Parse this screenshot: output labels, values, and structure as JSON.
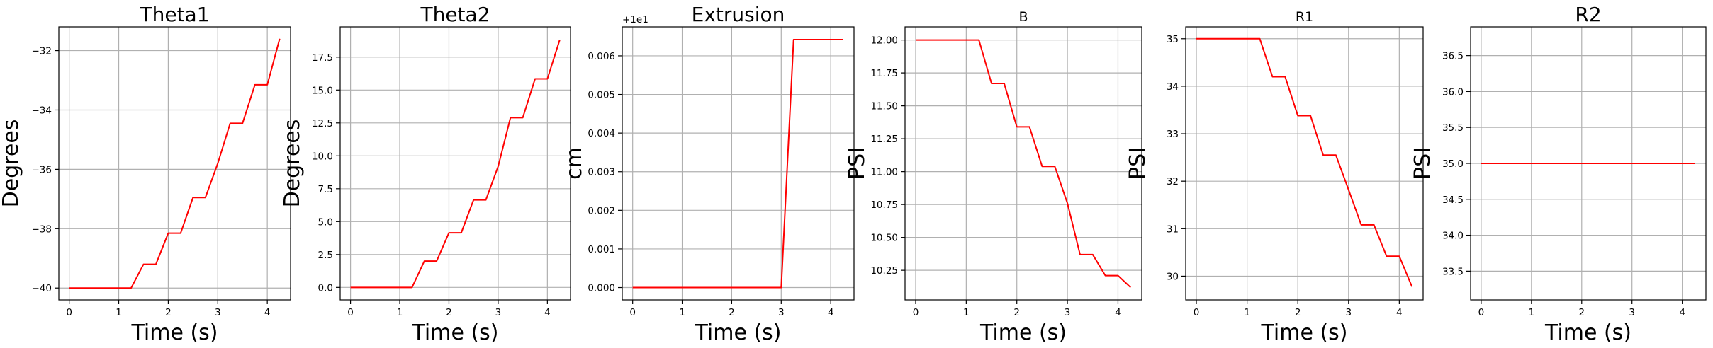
{
  "chart_data": [
    {
      "type": "line",
      "title": "Theta1",
      "title_size": "large",
      "xlabel": "Time (s)",
      "ylabel": "Degrees",
      "xlim": [
        -0.21,
        4.47
      ],
      "ylim": [
        -40.4,
        -31.2
      ],
      "xticks": [
        0,
        1,
        2,
        3,
        4
      ],
      "yticks": [
        -40,
        -38,
        -36,
        -34,
        -32
      ],
      "ytick_labels": [
        "−40",
        "−38",
        "−36",
        "−34",
        "−32"
      ],
      "offset_text": "",
      "grid": true,
      "series": [
        {
          "color": "#ff0000",
          "x": [
            0,
            0.25,
            0.5,
            0.75,
            1.0,
            1.25,
            1.5,
            1.75,
            2.0,
            2.25,
            2.5,
            2.75,
            3.0,
            3.25,
            3.5,
            3.75,
            4.0,
            4.25
          ],
          "y": [
            -40,
            -40,
            -40,
            -40,
            -40,
            -40,
            -39.2,
            -39.2,
            -38.15,
            -38.15,
            -36.95,
            -36.95,
            -35.8,
            -34.45,
            -34.45,
            -33.15,
            -33.15,
            -31.6
          ]
        }
      ]
    },
    {
      "type": "line",
      "title": "Theta2",
      "title_size": "large",
      "xlabel": "Time (s)",
      "ylabel": "Degrees",
      "xlim": [
        -0.21,
        4.47
      ],
      "ylim": [
        -0.95,
        19.8
      ],
      "xticks": [
        0,
        1,
        2,
        3,
        4
      ],
      "yticks": [
        0,
        2.5,
        5,
        7.5,
        10,
        12.5,
        15,
        17.5
      ],
      "ytick_labels": [
        "0.0",
        "2.5",
        "5.0",
        "7.5",
        "10.0",
        "12.5",
        "15.0",
        "17.5"
      ],
      "offset_text": "",
      "grid": true,
      "series": [
        {
          "color": "#ff0000",
          "x": [
            0,
            0.25,
            0.5,
            0.75,
            1.0,
            1.25,
            1.5,
            1.75,
            2.0,
            2.25,
            2.5,
            2.75,
            3.0,
            3.25,
            3.5,
            3.75,
            4.0,
            4.25
          ],
          "y": [
            0,
            0,
            0,
            0,
            0,
            0,
            2,
            2,
            4.15,
            4.15,
            6.65,
            6.65,
            9.2,
            12.9,
            12.9,
            15.85,
            15.85,
            18.8
          ]
        }
      ]
    },
    {
      "type": "line",
      "title": "Extrusion",
      "title_size": "large",
      "xlabel": "Time (s)",
      "ylabel": "cm",
      "xlim": [
        -0.21,
        4.47
      ],
      "ylim": [
        -0.00032,
        0.00675
      ],
      "xticks": [
        0,
        1,
        2,
        3,
        4
      ],
      "yticks": [
        0,
        0.001,
        0.002,
        0.003,
        0.004,
        0.005,
        0.006
      ],
      "ytick_labels": [
        "0.000",
        "0.001",
        "0.002",
        "0.003",
        "0.004",
        "0.005",
        "0.006"
      ],
      "offset_text": "+1e1",
      "grid": true,
      "series": [
        {
          "color": "#ff0000",
          "x": [
            0,
            0.25,
            0.5,
            0.75,
            1.0,
            1.25,
            1.5,
            1.75,
            2.0,
            2.25,
            2.5,
            2.75,
            3.0,
            3.25,
            3.5,
            3.75,
            4.0,
            4.25
          ],
          "y": [
            0,
            0,
            0,
            0,
            0,
            0,
            0,
            0,
            0,
            0,
            0,
            0,
            0,
            0.00642,
            0.00642,
            0.00642,
            0.00642,
            0.00642
          ]
        }
      ]
    },
    {
      "type": "line",
      "title": "B",
      "title_size": "small",
      "xlabel": "Time (s)",
      "ylabel": "PSI",
      "xlim": [
        -0.21,
        4.47
      ],
      "ylim": [
        10.025,
        12.1
      ],
      "xticks": [
        0,
        1,
        2,
        3,
        4
      ],
      "yticks": [
        10.25,
        10.5,
        10.75,
        11.0,
        11.25,
        11.5,
        11.75,
        12.0
      ],
      "ytick_labels": [
        "10.25",
        "10.50",
        "10.75",
        "11.00",
        "11.25",
        "11.50",
        "11.75",
        "12.00"
      ],
      "offset_text": "",
      "grid": true,
      "series": [
        {
          "color": "#ff0000",
          "x": [
            0,
            0.25,
            0.5,
            0.75,
            1.0,
            1.25,
            1.5,
            1.75,
            2.0,
            2.25,
            2.5,
            2.75,
            3.0,
            3.25,
            3.5,
            3.75,
            4.0,
            4.25
          ],
          "y": [
            12,
            12,
            12,
            12,
            12,
            12,
            11.67,
            11.67,
            11.34,
            11.34,
            11.04,
            11.04,
            10.76,
            10.37,
            10.37,
            10.21,
            10.21,
            10.12
          ]
        }
      ]
    },
    {
      "type": "line",
      "title": "R1",
      "title_size": "small",
      "xlabel": "Time (s)",
      "ylabel": "PSI",
      "xlim": [
        -0.21,
        4.47
      ],
      "ylim": [
        29.5,
        35.25
      ],
      "xticks": [
        0,
        1,
        2,
        3,
        4
      ],
      "yticks": [
        30,
        31,
        32,
        33,
        34,
        35
      ],
      "ytick_labels": [
        "30",
        "31",
        "32",
        "33",
        "34",
        "35"
      ],
      "offset_text": "",
      "grid": true,
      "series": [
        {
          "color": "#ff0000",
          "x": [
            0,
            0.25,
            0.5,
            0.75,
            1.0,
            1.25,
            1.5,
            1.75,
            2.0,
            2.25,
            2.5,
            2.75,
            3.0,
            3.25,
            3.5,
            3.75,
            4.0,
            4.25
          ],
          "y": [
            35,
            35,
            35,
            35,
            35,
            35,
            34.2,
            34.2,
            33.38,
            33.38,
            32.55,
            32.55,
            31.82,
            31.08,
            31.08,
            30.42,
            30.42,
            29.78
          ]
        }
      ]
    },
    {
      "type": "line",
      "title": "R2",
      "title_size": "large",
      "xlabel": "Time (s)",
      "ylabel": "PSI",
      "xlim": [
        -0.21,
        4.47
      ],
      "ylim": [
        33.1,
        36.9
      ],
      "xticks": [
        0,
        1,
        2,
        3,
        4
      ],
      "yticks": [
        33.5,
        34.0,
        34.5,
        35.0,
        35.5,
        36.0,
        36.5
      ],
      "ytick_labels": [
        "33.5",
        "34.0",
        "34.5",
        "35.0",
        "35.5",
        "36.0",
        "36.5"
      ],
      "offset_text": "",
      "grid": true,
      "series": [
        {
          "color": "#ff0000",
          "x": [
            0,
            0.25,
            0.5,
            0.75,
            1.0,
            1.25,
            1.5,
            1.75,
            2.0,
            2.25,
            2.5,
            2.75,
            3.0,
            3.25,
            3.5,
            3.75,
            4.0,
            4.25
          ],
          "y": [
            35,
            35,
            35,
            35,
            35,
            35,
            35,
            35,
            35,
            35,
            35,
            35,
            35,
            35,
            35,
            35,
            35,
            35
          ]
        }
      ]
    }
  ]
}
